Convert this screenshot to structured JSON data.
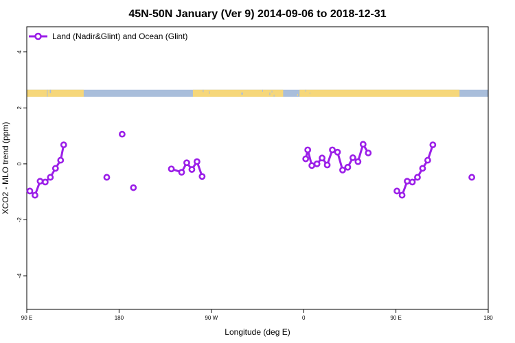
{
  "chart_data": {
    "type": "scatter",
    "title": "45N-50N January (Ver 9)   2014-09-06 to 2018-12-31",
    "xlabel": "Longitude (deg E)",
    "ylabel": "XCO2 - MLO trend (ppm)",
    "xlim": [
      90,
      540
    ],
    "ylim": [
      -5.2,
      4.9
    ],
    "x_ticks": [
      {
        "value": 90,
        "label": "90 E"
      },
      {
        "value": 180,
        "label": "180"
      },
      {
        "value": 270,
        "label": "90 W"
      },
      {
        "value": 360,
        "label": "0"
      },
      {
        "value": 450,
        "label": "90 E"
      },
      {
        "value": 540,
        "label": "180"
      }
    ],
    "y_ticks": [
      {
        "value": 4,
        "label": "4"
      },
      {
        "value": 2,
        "label": "2"
      },
      {
        "value": 0,
        "label": "0"
      },
      {
        "value": -2,
        "label": "-2"
      },
      {
        "value": -4,
        "label": "-4"
      }
    ],
    "legend": {
      "position": "top-left"
    },
    "map_strip": {
      "y_range": [
        2.4,
        2.65
      ],
      "land_color": "#f6d77a",
      "ocean_color": "#a9bedb"
    },
    "series": [
      {
        "name": "Land (Nadir&Glint) and Ocean (Glint)",
        "color": "#9b1fe8",
        "x": [
          93,
          98,
          103,
          108,
          113,
          118,
          123,
          126,
          168,
          183,
          194,
          231,
          241,
          246,
          251,
          256,
          261,
          362,
          364,
          368,
          373,
          378,
          383,
          388,
          393,
          398,
          403,
          408,
          413,
          418,
          423,
          451,
          456,
          461,
          466,
          471,
          476,
          481,
          486,
          524
        ],
        "y": [
          -0.97,
          -1.12,
          -0.62,
          -0.65,
          -0.48,
          -0.16,
          0.13,
          0.68,
          -0.48,
          1.06,
          -0.85,
          -0.18,
          -0.3,
          0.04,
          -0.2,
          0.08,
          -0.45,
          0.18,
          0.5,
          -0.06,
          0.0,
          0.21,
          -0.04,
          0.5,
          0.42,
          -0.22,
          -0.12,
          0.22,
          0.08,
          0.7,
          0.39,
          -0.97,
          -1.12,
          -0.62,
          -0.65,
          -0.48,
          -0.16,
          0.13,
          0.68,
          -0.48
        ],
        "segments": [
          [
            0,
            7
          ],
          [
            11,
            16
          ],
          [
            17,
            30
          ],
          [
            31,
            38
          ]
        ]
      }
    ]
  }
}
